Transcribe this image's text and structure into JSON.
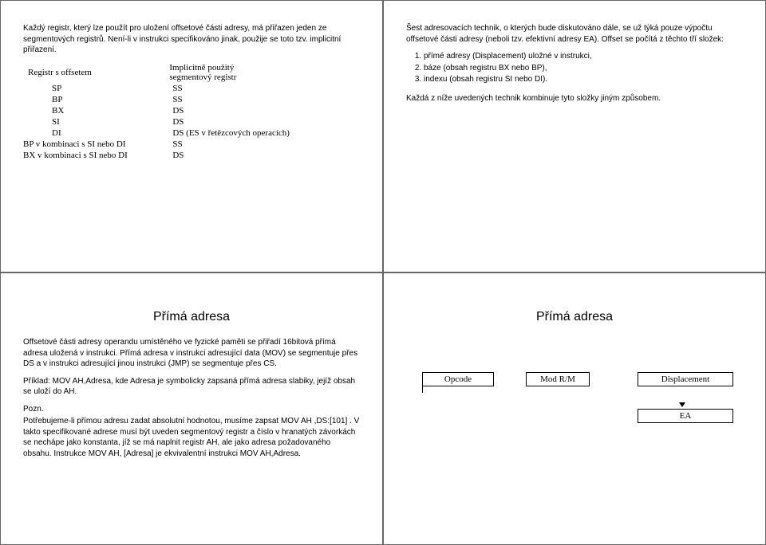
{
  "cells": {
    "tl": {
      "para": "Každý registr, který lze použít pro uložení offsetové části adresy, má přiřazen jeden ze segmentových registrů. Není-li v instrukci specifikováno jinak, použije se toto tzv. implicitní přiřazení.",
      "table": {
        "head_left": "Registr s offsetem",
        "head_right_l1": "Implicitně použitý",
        "head_right_l2": "segmentový registr",
        "rows": [
          {
            "l": "SP",
            "r": "SS",
            "wide": false
          },
          {
            "l": "BP",
            "r": "SS",
            "wide": false
          },
          {
            "l": "BX",
            "r": "DS",
            "wide": false
          },
          {
            "l": "SI",
            "r": "DS",
            "wide": false
          },
          {
            "l": "DI",
            "r": "DS (ES v řetězcových operacích)",
            "wide": false
          },
          {
            "l": "BP v kombinaci s SI nebo DI",
            "r": "SS",
            "wide": true
          },
          {
            "l": "BX v kombinaci s SI nebo DI",
            "r": "DS",
            "wide": true
          }
        ]
      }
    },
    "tr": {
      "para1": "Šest adresovacích technik, o kterých bude diskutováno dále, se už týká pouze výpočtu offsetové části adresy (neboli tzv. efektivní adresy EA). Offset se počítá z těchto tří složek:",
      "list": [
        "přímé adresy (Displacement) uložné v instrukci,",
        "báze (obsah registru BX nebo BP),",
        "indexu (obsah registru SI nebo DI)."
      ],
      "para2": "Každá z níže uvedených technik kombinuje tyto složky jiným způsobem."
    },
    "bl": {
      "title": "Přímá adresa",
      "para1": "Offsetové části adresy operandu umístěného ve fyzické paměti se přiřadí 16bitová přímá adresa uložená v instrukci. Přímá adresa v instrukci adresující data (MOV) se segmentuje přes DS a v instrukci adresující jinou instrukci (JMP) se segmentuje přes CS.",
      "para2": "Příklad: MOV AH,Adresa, kde Adresa je symbolicky zapsaná přímá adresa slabiky, jejíž obsah se uloží do AH.",
      "para3_label": "Pozn.",
      "para3": "Potřebujeme-li přímou adresu zadat absolutní hodnotou, musíme zapsat MOV AH ,DS:[101] . V takto specifikované adrese musí být uveden segmentový registr a číslo v hranatých závorkách se nechápe jako konstanta, jíž se má naplnit registr AH, ale jako adresa požadovaného obsahu. Instrukce MOV AH, [Adresa] je ekvivalentní instrukci MOV AH,Adresa."
    },
    "br": {
      "title": "Přímá adresa",
      "diagram": {
        "opcode": "Opcode",
        "modrm": "Mod R/M",
        "disp": "Displacement",
        "ea": "EA"
      }
    }
  }
}
